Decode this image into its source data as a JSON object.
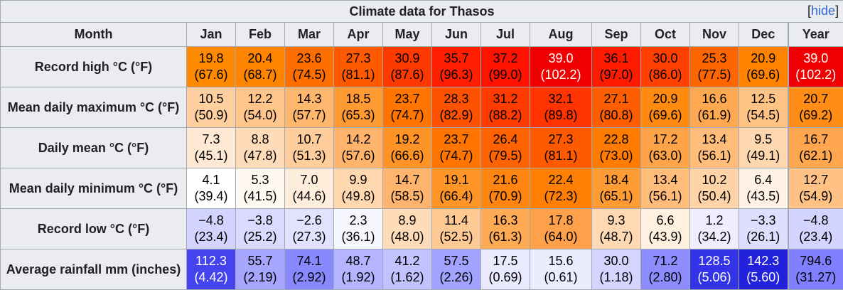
{
  "caption": {
    "title": "Climate data for Thasos",
    "hide_open": "[",
    "hide_label": "hide",
    "hide_close": "]"
  },
  "header": [
    "Month",
    "Jan",
    "Feb",
    "Mar",
    "Apr",
    "May",
    "Jun",
    "Jul",
    "Aug",
    "Sep",
    "Oct",
    "Nov",
    "Dec",
    "Year"
  ],
  "rows": [
    {
      "label": "Record high °C (°F)",
      "cells": [
        {
          "v": "19.8",
          "f": "(67.6)",
          "bg": "#ff8a00",
          "fg": "#000000"
        },
        {
          "v": "20.4",
          "f": "(68.7)",
          "bg": "#ff8400",
          "fg": "#000000"
        },
        {
          "v": "23.6",
          "f": "(74.5)",
          "bg": "#ff6f00",
          "fg": "#000000"
        },
        {
          "v": "27.3",
          "f": "(81.1)",
          "bg": "#ff5a00",
          "fg": "#000000"
        },
        {
          "v": "30.9",
          "f": "(87.6)",
          "bg": "#ff3a00",
          "fg": "#000000"
        },
        {
          "v": "35.7",
          "f": "(96.3)",
          "bg": "#ff1f00",
          "fg": "#000000"
        },
        {
          "v": "37.2",
          "f": "(99.0)",
          "bg": "#ff1300",
          "fg": "#000000"
        },
        {
          "v": "39.0",
          "f": "(102.2)",
          "bg": "#f00000",
          "fg": "#ffffff"
        },
        {
          "v": "36.1",
          "f": "(97.0)",
          "bg": "#ff1b00",
          "fg": "#000000"
        },
        {
          "v": "30.0",
          "f": "(86.0)",
          "bg": "#ff4000",
          "fg": "#000000"
        },
        {
          "v": "25.3",
          "f": "(77.5)",
          "bg": "#ff6600",
          "fg": "#000000"
        },
        {
          "v": "20.9",
          "f": "(69.6)",
          "bg": "#ff8200",
          "fg": "#000000"
        },
        {
          "v": "39.0",
          "f": "(102.2)",
          "bg": "#f00000",
          "fg": "#ffffff"
        }
      ]
    },
    {
      "label": "Mean daily maximum °C (°F)",
      "cells": [
        {
          "v": "10.5",
          "f": "(50.9)",
          "bg": "#ffcf9f",
          "fg": "#000000"
        },
        {
          "v": "12.2",
          "f": "(54.0)",
          "bg": "#ffc58a",
          "fg": "#000000"
        },
        {
          "v": "14.3",
          "f": "(57.7)",
          "bg": "#ffb66d",
          "fg": "#000000"
        },
        {
          "v": "18.5",
          "f": "(65.3)",
          "bg": "#ff9a33",
          "fg": "#000000"
        },
        {
          "v": "23.7",
          "f": "(74.7)",
          "bg": "#ff7500",
          "fg": "#000000"
        },
        {
          "v": "28.3",
          "f": "(82.9)",
          "bg": "#ff5200",
          "fg": "#000000"
        },
        {
          "v": "31.2",
          "f": "(88.2)",
          "bg": "#ff3b00",
          "fg": "#000000"
        },
        {
          "v": "32.1",
          "f": "(89.8)",
          "bg": "#ff3400",
          "fg": "#000000"
        },
        {
          "v": "27.1",
          "f": "(80.8)",
          "bg": "#ff5e00",
          "fg": "#000000"
        },
        {
          "v": "20.9",
          "f": "(69.6)",
          "bg": "#ff8a10",
          "fg": "#000000"
        },
        {
          "v": "16.6",
          "f": "(61.9)",
          "bg": "#ffa852",
          "fg": "#000000"
        },
        {
          "v": "12.5",
          "f": "(54.5)",
          "bg": "#ffc386",
          "fg": "#000000"
        },
        {
          "v": "20.7",
          "f": "(69.2)",
          "bg": "#ff8c14",
          "fg": "#000000"
        }
      ]
    },
    {
      "label": "Daily mean °C (°F)",
      "cells": [
        {
          "v": "7.3",
          "f": "(45.1)",
          "bg": "#ffe9d4",
          "fg": "#000000"
        },
        {
          "v": "8.8",
          "f": "(47.8)",
          "bg": "#ffdcb9",
          "fg": "#000000"
        },
        {
          "v": "10.7",
          "f": "(51.3)",
          "bg": "#ffcd9c",
          "fg": "#000000"
        },
        {
          "v": "14.2",
          "f": "(57.6)",
          "bg": "#ffb36b",
          "fg": "#000000"
        },
        {
          "v": "19.2",
          "f": "(66.6)",
          "bg": "#ff9326",
          "fg": "#000000"
        },
        {
          "v": "23.7",
          "f": "(74.7)",
          "bg": "#ff7500",
          "fg": "#000000"
        },
        {
          "v": "26.4",
          "f": "(79.5)",
          "bg": "#ff6200",
          "fg": "#000000"
        },
        {
          "v": "27.3",
          "f": "(81.1)",
          "bg": "#ff5a00",
          "fg": "#000000"
        },
        {
          "v": "22.8",
          "f": "(73.0)",
          "bg": "#ff7c00",
          "fg": "#000000"
        },
        {
          "v": "17.2",
          "f": "(63.0)",
          "bg": "#ffa348",
          "fg": "#000000"
        },
        {
          "v": "13.4",
          "f": "(56.1)",
          "bg": "#ffbc7a",
          "fg": "#000000"
        },
        {
          "v": "9.5",
          "f": "(49.1)",
          "bg": "#ffd7ae",
          "fg": "#000000"
        },
        {
          "v": "16.7",
          "f": "(62.1)",
          "bg": "#ffa64f",
          "fg": "#000000"
        }
      ]
    },
    {
      "label": "Mean daily minimum °C (°F)",
      "cells": [
        {
          "v": "4.1",
          "f": "(39.4)",
          "bg": "#ffffff",
          "fg": "#000000"
        },
        {
          "v": "5.3",
          "f": "(41.5)",
          "bg": "#fff8f1",
          "fg": "#000000"
        },
        {
          "v": "7.0",
          "f": "(44.6)",
          "bg": "#ffeddb",
          "fg": "#000000"
        },
        {
          "v": "9.9",
          "f": "(49.8)",
          "bg": "#ffd8b0",
          "fg": "#000000"
        },
        {
          "v": "14.7",
          "f": "(58.5)",
          "bg": "#ffb46d",
          "fg": "#000000"
        },
        {
          "v": "19.1",
          "f": "(66.4)",
          "bg": "#ff9427",
          "fg": "#000000"
        },
        {
          "v": "21.6",
          "f": "(70.9)",
          "bg": "#ff8410",
          "fg": "#000000"
        },
        {
          "v": "22.4",
          "f": "(72.3)",
          "bg": "#ff7f05",
          "fg": "#000000"
        },
        {
          "v": "18.4",
          "f": "(65.1)",
          "bg": "#ff9b33",
          "fg": "#000000"
        },
        {
          "v": "13.4",
          "f": "(56.1)",
          "bg": "#ffbc7a",
          "fg": "#000000"
        },
        {
          "v": "10.2",
          "f": "(50.4)",
          "bg": "#ffd3a8",
          "fg": "#000000"
        },
        {
          "v": "6.4",
          "f": "(43.5)",
          "bg": "#fff1e3",
          "fg": "#000000"
        },
        {
          "v": "12.7",
          "f": "(54.9)",
          "bg": "#ffc284",
          "fg": "#000000"
        }
      ]
    },
    {
      "label": "Record low °C (°F)",
      "cells": [
        {
          "v": "−4.8",
          "f": "(23.4)",
          "bg": "#d3d3ff",
          "fg": "#000000"
        },
        {
          "v": "−3.8",
          "f": "(25.2)",
          "bg": "#dadaff",
          "fg": "#000000"
        },
        {
          "v": "−2.6",
          "f": "(27.3)",
          "bg": "#e2e2ff",
          "fg": "#000000"
        },
        {
          "v": "2.3",
          "f": "(36.1)",
          "bg": "#f6f6ff",
          "fg": "#000000"
        },
        {
          "v": "8.9",
          "f": "(48.0)",
          "bg": "#ffdcb9",
          "fg": "#000000"
        },
        {
          "v": "11.4",
          "f": "(52.5)",
          "bg": "#ffc994",
          "fg": "#000000"
        },
        {
          "v": "16.3",
          "f": "(61.3)",
          "bg": "#ffaa55",
          "fg": "#000000"
        },
        {
          "v": "17.8",
          "f": "(64.0)",
          "bg": "#ffa04a",
          "fg": "#000000"
        },
        {
          "v": "9.3",
          "f": "(48.7)",
          "bg": "#ffd9b3",
          "fg": "#000000"
        },
        {
          "v": "6.6",
          "f": "(43.9)",
          "bg": "#fff0e0",
          "fg": "#000000"
        },
        {
          "v": "1.2",
          "f": "(34.2)",
          "bg": "#eeeeff",
          "fg": "#000000"
        },
        {
          "v": "−3.3",
          "f": "(26.1)",
          "bg": "#dedeff",
          "fg": "#000000"
        },
        {
          "v": "−4.8",
          "f": "(23.4)",
          "bg": "#d3d3ff",
          "fg": "#000000"
        }
      ]
    },
    {
      "label": "Average rainfall mm (inches)",
      "cells": [
        {
          "v": "112.3",
          "f": "(4.42)",
          "bg": "#4444ee",
          "fg": "#ffffff"
        },
        {
          "v": "55.7",
          "f": "(2.19)",
          "bg": "#a6a6ff",
          "fg": "#000000"
        },
        {
          "v": "74.1",
          "f": "(2.92)",
          "bg": "#8888ff",
          "fg": "#000000"
        },
        {
          "v": "48.7",
          "f": "(1.92)",
          "bg": "#b4b4ff",
          "fg": "#000000"
        },
        {
          "v": "41.2",
          "f": "(1.62)",
          "bg": "#c2c2ff",
          "fg": "#000000"
        },
        {
          "v": "57.5",
          "f": "(2.26)",
          "bg": "#a2a2ff",
          "fg": "#000000"
        },
        {
          "v": "17.5",
          "f": "(0.69)",
          "bg": "#eaeaff",
          "fg": "#000000"
        },
        {
          "v": "15.6",
          "f": "(0.61)",
          "bg": "#ececff",
          "fg": "#000000"
        },
        {
          "v": "30.0",
          "f": "(1.18)",
          "bg": "#d4d4ff",
          "fg": "#000000"
        },
        {
          "v": "71.2",
          "f": "(2.80)",
          "bg": "#8c8cff",
          "fg": "#000000"
        },
        {
          "v": "128.5",
          "f": "(5.06)",
          "bg": "#3333e8",
          "fg": "#ffffff"
        },
        {
          "v": "142.3",
          "f": "(5.60)",
          "bg": "#2222dd",
          "fg": "#ffffff"
        },
        {
          "v": "794.6",
          "f": "(31.27)",
          "bg": "#7f7fff",
          "fg": "#000000"
        }
      ]
    }
  ]
}
